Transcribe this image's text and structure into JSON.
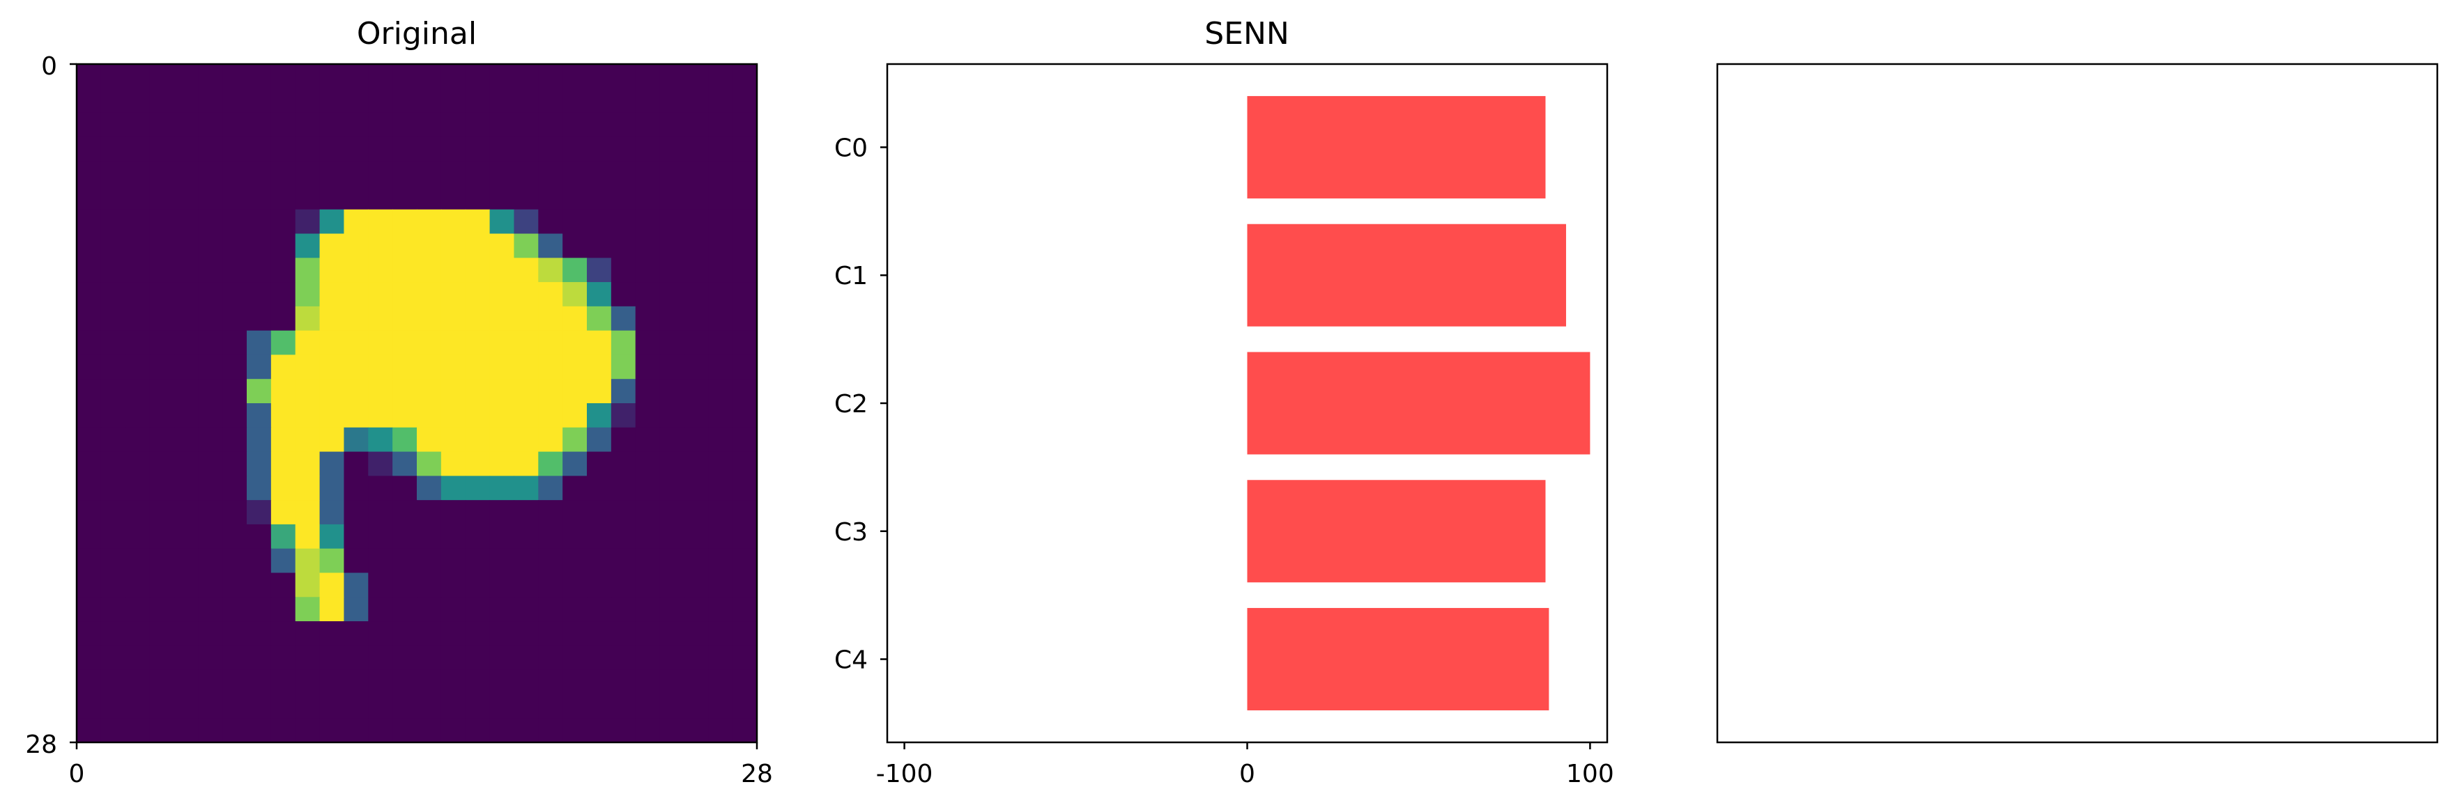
{
  "chart_data": [
    {
      "type": "heatmap",
      "title": "Original",
      "colormap": "viridis",
      "xlim": [
        0,
        28
      ],
      "ylim": [
        28,
        0
      ],
      "x_ticks": [
        "0",
        "28"
      ],
      "y_ticks": [
        "0",
        "28"
      ],
      "grid_size": 28,
      "rows": [
        [
          0,
          0,
          0,
          0,
          0,
          0,
          0,
          0,
          0,
          0,
          0,
          0,
          0,
          0,
          0,
          0,
          0,
          0,
          0,
          0,
          0,
          0,
          0,
          0,
          0,
          0,
          0,
          0
        ],
        [
          0,
          0,
          0,
          0,
          0,
          0,
          0,
          0,
          0,
          0,
          0,
          0,
          0,
          0,
          0,
          0,
          0,
          0,
          0,
          0,
          0,
          0,
          0,
          0,
          0,
          0,
          0,
          0
        ],
        [
          0,
          0,
          0,
          0,
          0,
          0,
          0,
          0,
          0,
          0,
          0,
          0,
          0,
          0,
          0,
          0,
          0,
          0,
          0,
          0,
          0,
          0,
          0,
          0,
          0,
          0,
          0,
          0
        ],
        [
          0,
          0,
          0,
          0,
          0,
          0,
          0,
          0,
          0,
          0,
          0,
          0,
          0,
          0,
          0,
          0,
          0,
          0,
          0,
          0,
          0,
          0,
          0,
          0,
          0,
          0,
          0,
          0
        ],
        [
          0,
          0,
          0,
          0,
          0,
          0,
          0,
          0,
          0,
          0,
          0,
          0,
          0,
          0,
          0,
          0,
          0,
          0,
          0,
          0,
          0,
          0,
          0,
          0,
          0,
          0,
          0,
          0
        ],
        [
          0,
          0,
          0,
          0,
          0,
          0,
          0,
          0,
          0,
          0,
          0,
          0,
          0,
          0,
          0,
          0,
          0,
          0,
          0,
          0,
          0,
          0,
          0,
          0,
          0,
          0,
          0,
          0
        ],
        [
          0,
          0,
          0,
          0,
          0,
          0,
          0,
          0,
          0,
          0.1,
          0.5,
          1,
          1,
          1,
          1,
          1,
          1,
          0.5,
          0.2,
          0,
          0,
          0,
          0,
          0,
          0,
          0,
          0,
          0
        ],
        [
          0,
          0,
          0,
          0,
          0,
          0,
          0,
          0,
          0,
          0.5,
          1,
          1,
          1,
          1,
          1,
          1,
          1,
          1,
          0.8,
          0.3,
          0,
          0,
          0,
          0,
          0,
          0,
          0,
          0
        ],
        [
          0,
          0,
          0,
          0,
          0,
          0,
          0,
          0,
          0,
          0.8,
          1,
          1,
          1,
          1,
          1,
          1,
          1,
          1,
          1,
          0.9,
          0.7,
          0.2,
          0,
          0,
          0,
          0,
          0,
          0
        ],
        [
          0,
          0,
          0,
          0,
          0,
          0,
          0,
          0,
          0,
          0.8,
          1,
          1,
          1,
          1,
          1,
          1,
          1,
          1,
          1,
          1,
          0.9,
          0.5,
          0,
          0,
          0,
          0,
          0,
          0
        ],
        [
          0,
          0,
          0,
          0,
          0,
          0,
          0,
          0,
          0,
          0.9,
          1,
          1,
          1,
          1,
          1,
          1,
          1,
          1,
          1,
          1,
          1,
          0.8,
          0.3,
          0,
          0,
          0,
          0,
          0
        ],
        [
          0,
          0,
          0,
          0,
          0,
          0,
          0,
          0.3,
          0.7,
          1,
          1,
          1,
          1,
          1,
          1,
          1,
          1,
          1,
          1,
          1,
          1,
          1,
          0.8,
          0,
          0,
          0,
          0,
          0
        ],
        [
          0,
          0,
          0,
          0,
          0,
          0,
          0,
          0.3,
          1,
          1,
          1,
          1,
          1,
          1,
          1,
          1,
          1,
          1,
          1,
          1,
          1,
          1,
          0.8,
          0,
          0,
          0,
          0,
          0
        ],
        [
          0,
          0,
          0,
          0,
          0,
          0,
          0,
          0.8,
          1,
          1,
          1,
          1,
          1,
          1,
          1,
          1,
          1,
          1,
          1,
          1,
          1,
          1,
          0.3,
          0,
          0,
          0,
          0,
          0
        ],
        [
          0,
          0,
          0,
          0,
          0,
          0,
          0,
          0.3,
          1,
          1,
          1,
          1,
          1,
          1,
          1,
          1,
          1,
          1,
          1,
          1,
          1,
          0.5,
          0.1,
          0,
          0,
          0,
          0,
          0
        ],
        [
          0,
          0,
          0,
          0,
          0,
          0,
          0,
          0.3,
          1,
          1,
          1,
          0.4,
          0.5,
          0.7,
          1,
          1,
          1,
          1,
          1,
          1,
          0.8,
          0.3,
          0,
          0,
          0,
          0,
          0,
          0
        ],
        [
          0,
          0,
          0,
          0,
          0,
          0,
          0,
          0.3,
          1,
          1,
          0.3,
          0,
          0.1,
          0.3,
          0.8,
          1,
          1,
          1,
          1,
          0.7,
          0.3,
          0,
          0,
          0,
          0,
          0,
          0,
          0
        ],
        [
          0,
          0,
          0,
          0,
          0,
          0,
          0,
          0.3,
          1,
          1,
          0.3,
          0,
          0,
          0,
          0.3,
          0.5,
          0.5,
          0.5,
          0.5,
          0.3,
          0,
          0,
          0,
          0,
          0,
          0,
          0,
          0
        ],
        [
          0,
          0,
          0,
          0,
          0,
          0,
          0,
          0.1,
          1,
          1,
          0.3,
          0,
          0,
          0,
          0,
          0,
          0,
          0,
          0,
          0,
          0,
          0,
          0,
          0,
          0,
          0,
          0,
          0
        ],
        [
          0,
          0,
          0,
          0,
          0,
          0,
          0,
          0,
          0.6,
          1,
          0.5,
          0,
          0,
          0,
          0,
          0,
          0,
          0,
          0,
          0,
          0,
          0,
          0,
          0,
          0,
          0,
          0,
          0
        ],
        [
          0,
          0,
          0,
          0,
          0,
          0,
          0,
          0,
          0.3,
          0.9,
          0.8,
          0,
          0,
          0,
          0,
          0,
          0,
          0,
          0,
          0,
          0,
          0,
          0,
          0,
          0,
          0,
          0,
          0
        ],
        [
          0,
          0,
          0,
          0,
          0,
          0,
          0,
          0,
          0,
          0.9,
          1,
          0.3,
          0,
          0,
          0,
          0,
          0,
          0,
          0,
          0,
          0,
          0,
          0,
          0,
          0,
          0,
          0,
          0
        ],
        [
          0,
          0,
          0,
          0,
          0,
          0,
          0,
          0,
          0,
          0.8,
          1,
          0.3,
          0,
          0,
          0,
          0,
          0,
          0,
          0,
          0,
          0,
          0,
          0,
          0,
          0,
          0,
          0,
          0
        ],
        [
          0,
          0,
          0,
          0,
          0,
          0,
          0,
          0,
          0,
          0,
          0,
          0,
          0,
          0,
          0,
          0,
          0,
          0,
          0,
          0,
          0,
          0,
          0,
          0,
          0,
          0,
          0,
          0
        ],
        [
          0,
          0,
          0,
          0,
          0,
          0,
          0,
          0,
          0,
          0,
          0,
          0,
          0,
          0,
          0,
          0,
          0,
          0,
          0,
          0,
          0,
          0,
          0,
          0,
          0,
          0,
          0,
          0
        ],
        [
          0,
          0,
          0,
          0,
          0,
          0,
          0,
          0,
          0,
          0,
          0,
          0,
          0,
          0,
          0,
          0,
          0,
          0,
          0,
          0,
          0,
          0,
          0,
          0,
          0,
          0,
          0,
          0
        ],
        [
          0,
          0,
          0,
          0,
          0,
          0,
          0,
          0,
          0,
          0,
          0,
          0,
          0,
          0,
          0,
          0,
          0,
          0,
          0,
          0,
          0,
          0,
          0,
          0,
          0,
          0,
          0,
          0
        ],
        [
          0,
          0,
          0,
          0,
          0,
          0,
          0,
          0,
          0,
          0,
          0,
          0,
          0,
          0,
          0,
          0,
          0,
          0,
          0,
          0,
          0,
          0,
          0,
          0,
          0,
          0,
          0,
          0
        ]
      ]
    },
    {
      "type": "bar",
      "orientation": "horizontal",
      "title": "SENN",
      "categories": [
        "C0",
        "C1",
        "C2",
        "C3",
        "C4"
      ],
      "values": [
        87,
        93,
        100,
        87,
        88
      ],
      "xlim": [
        -105,
        105
      ],
      "x_ticks": [
        -100,
        0,
        100
      ],
      "x_tick_labels": [
        "-100",
        "0",
        "100"
      ],
      "bar_color": "#ff4d4d",
      "grid": false
    },
    {
      "type": "empty",
      "title": ""
    }
  ]
}
